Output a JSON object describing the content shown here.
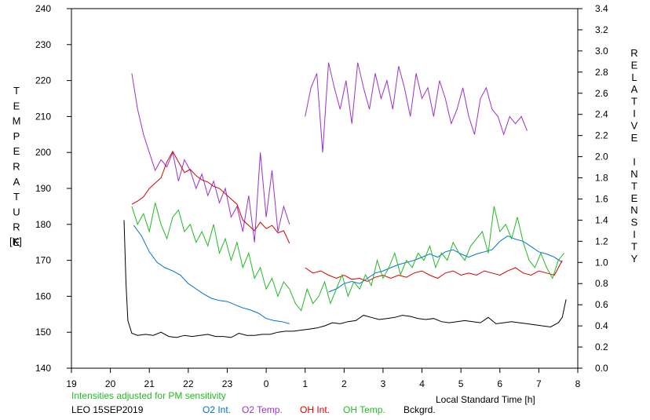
{
  "chart_data": {
    "type": "line",
    "title": "",
    "ylabel_left": "TEMPERATURE",
    "ylabel_left_unit": "[K]",
    "ylabel_right": "RELATIVE INTENSITY",
    "xlabel": "Local Standard Time [h]",
    "note": "Intensities adjusted for PM sensitivity",
    "station_date": "LEO 15SEP2019",
    "xlim": [
      19,
      32
    ],
    "ylim_left": [
      140,
      240
    ],
    "ylim_right": [
      0.0,
      3.4
    ],
    "x_tick_values": [
      19,
      20,
      21,
      22,
      23,
      24,
      25,
      26,
      27,
      28,
      29,
      30,
      31,
      32
    ],
    "x_tick_labels": [
      "19",
      "20",
      "21",
      "22",
      "23",
      "0",
      "1",
      "2",
      "3",
      "4",
      "5",
      "6",
      "7",
      "8"
    ],
    "y_left_ticks": [
      "140",
      "150",
      "160",
      "170",
      "180",
      "190",
      "200",
      "210",
      "220",
      "230",
      "240"
    ],
    "y_right_ticks": [
      "0.0",
      "0.2",
      "0.4",
      "0.6",
      "0.8",
      "1.0",
      "1.2",
      "1.4",
      "1.6",
      "1.8",
      "2.0",
      "2.2",
      "2.4",
      "2.6",
      "2.8",
      "3.0",
      "3.2",
      "3.4"
    ],
    "grid": false,
    "legend_position": "bottom",
    "series": [
      {
        "name": "O2 Int.",
        "color": "#0070dd",
        "axis": "right",
        "x": [
          20.6,
          20.8,
          21.0,
          21.2,
          21.4,
          21.6,
          21.8,
          22.0,
          22.2,
          22.4,
          22.6,
          22.8,
          23.0,
          23.2,
          23.4,
          23.6,
          23.8,
          24.0,
          24.2,
          24.4,
          24.6,
          null,
          25.6,
          25.8,
          26.0,
          26.2,
          26.4,
          26.6,
          26.8,
          27.0,
          27.2,
          27.4,
          27.6,
          27.8,
          28.0,
          28.2,
          28.4,
          28.6,
          28.8,
          29.0,
          29.2,
          29.4,
          29.6,
          29.8,
          30.0,
          30.2,
          30.4,
          30.6,
          30.8,
          31.0,
          31.2,
          31.4,
          31.6
        ],
        "y": [
          1.35,
          1.25,
          1.1,
          1.0,
          0.95,
          0.92,
          0.88,
          0.8,
          0.75,
          0.7,
          0.66,
          0.64,
          0.63,
          0.6,
          0.57,
          0.55,
          0.52,
          0.47,
          0.45,
          0.44,
          0.42,
          null,
          0.72,
          0.75,
          0.8,
          0.82,
          0.8,
          0.85,
          0.9,
          0.92,
          0.95,
          0.98,
          1.0,
          1.02,
          1.05,
          1.08,
          1.05,
          1.1,
          1.12,
          1.08,
          1.05,
          1.08,
          1.1,
          1.12,
          1.2,
          1.25,
          1.22,
          1.2,
          1.15,
          1.1,
          1.08,
          1.05,
          1.0
        ]
      },
      {
        "name": "O2 Temp.",
        "color": "#9933cc",
        "axis": "left",
        "x": [
          20.55,
          20.7,
          20.85,
          21.0,
          21.15,
          21.3,
          21.45,
          21.6,
          21.75,
          21.9,
          22.05,
          22.2,
          22.35,
          22.5,
          22.65,
          22.8,
          22.95,
          23.1,
          23.25,
          23.4,
          23.55,
          23.7,
          23.85,
          24.0,
          24.15,
          24.3,
          24.45,
          24.6,
          null,
          25.0,
          25.15,
          25.3,
          25.45,
          25.6,
          25.75,
          25.9,
          26.05,
          26.2,
          26.35,
          26.5,
          26.65,
          26.8,
          26.95,
          27.1,
          27.25,
          27.4,
          27.55,
          27.7,
          27.85,
          28.0,
          28.15,
          28.3,
          28.45,
          28.6,
          28.75,
          28.9,
          29.05,
          29.2,
          29.35,
          29.5,
          29.65,
          29.8,
          29.95,
          30.1,
          30.25,
          30.4,
          30.55,
          30.7
        ],
        "y": [
          222,
          212,
          205,
          200,
          195,
          198,
          196,
          200,
          192,
          198,
          195,
          190,
          194,
          188,
          192,
          186,
          190,
          182,
          185,
          178,
          188,
          175,
          200,
          182,
          195,
          178,
          185,
          180,
          null,
          210,
          218,
          222,
          200,
          225,
          218,
          212,
          220,
          208,
          225,
          218,
          212,
          222,
          215,
          220,
          212,
          224,
          218,
          210,
          222,
          215,
          218,
          210,
          220,
          215,
          208,
          212,
          218,
          210,
          205,
          215,
          218,
          212,
          210,
          205,
          210,
          208,
          210,
          206
        ]
      },
      {
        "name": "OH Int.",
        "color": "#dd0000",
        "axis": "right",
        "x": [
          20.55,
          20.7,
          20.85,
          21.0,
          21.15,
          21.3,
          21.45,
          21.6,
          21.75,
          21.9,
          22.05,
          22.2,
          22.35,
          22.5,
          22.65,
          22.8,
          22.95,
          23.1,
          23.25,
          23.4,
          23.55,
          23.7,
          23.85,
          24.0,
          24.15,
          24.3,
          24.45,
          24.6,
          null,
          25.0,
          25.2,
          25.4,
          25.6,
          25.8,
          26.0,
          26.2,
          26.4,
          26.6,
          26.8,
          27.0,
          27.2,
          27.4,
          27.6,
          27.8,
          28.0,
          28.2,
          28.4,
          28.6,
          28.8,
          29.0,
          29.2,
          29.4,
          29.6,
          29.8,
          30.0,
          30.2,
          30.4,
          30.6,
          30.8,
          31.0,
          31.2,
          31.4,
          31.6
        ],
        "y": [
          1.55,
          1.58,
          1.62,
          1.7,
          1.75,
          1.8,
          1.95,
          2.05,
          1.95,
          1.85,
          1.88,
          1.82,
          1.78,
          1.76,
          1.72,
          1.7,
          1.65,
          1.6,
          1.55,
          1.4,
          1.35,
          1.3,
          1.38,
          1.32,
          1.35,
          1.28,
          1.3,
          1.18,
          null,
          0.95,
          0.9,
          0.92,
          0.88,
          0.85,
          0.88,
          0.84,
          0.85,
          0.82,
          0.86,
          0.88,
          0.85,
          0.88,
          0.86,
          0.9,
          0.92,
          0.88,
          0.85,
          0.9,
          0.92,
          0.88,
          0.9,
          0.88,
          0.92,
          0.9,
          0.88,
          0.92,
          0.95,
          0.9,
          0.88,
          0.92,
          0.9,
          0.88,
          1.02
        ]
      },
      {
        "name": "OH Temp.",
        "color": "#22bb22",
        "axis": "left",
        "x": [
          20.55,
          20.7,
          20.85,
          21.0,
          21.15,
          21.3,
          21.45,
          21.6,
          21.75,
          21.9,
          22.05,
          22.2,
          22.35,
          22.5,
          22.65,
          22.8,
          22.95,
          23.1,
          23.25,
          23.4,
          23.55,
          23.7,
          23.85,
          24.0,
          24.15,
          24.3,
          24.45,
          24.6,
          24.75,
          24.9,
          25.05,
          25.2,
          25.35,
          25.5,
          25.65,
          25.8,
          25.95,
          26.1,
          26.25,
          26.4,
          26.55,
          26.7,
          26.85,
          27.0,
          27.15,
          27.3,
          27.45,
          27.6,
          27.75,
          27.9,
          28.05,
          28.2,
          28.35,
          28.5,
          28.65,
          28.8,
          28.95,
          29.1,
          29.25,
          29.4,
          29.55,
          29.7,
          29.85,
          30.0,
          30.15,
          30.3,
          30.45,
          30.6,
          30.75,
          30.9,
          31.05,
          31.2,
          31.35,
          31.5,
          31.65
        ],
        "y": [
          185,
          180,
          183,
          178,
          186,
          180,
          176,
          182,
          184,
          178,
          180,
          175,
          178,
          174,
          180,
          172,
          176,
          170,
          175,
          168,
          172,
          165,
          168,
          162,
          165,
          160,
          164,
          162,
          158,
          156,
          162,
          158,
          160,
          164,
          158,
          162,
          166,
          160,
          164,
          162,
          166,
          163,
          170,
          165,
          168,
          172,
          166,
          170,
          168,
          172,
          170,
          174,
          168,
          172,
          170,
          175,
          172,
          170,
          174,
          176,
          178,
          172,
          185,
          178,
          180,
          176,
          182,
          175,
          170,
          168,
          172,
          168,
          165,
          170,
          172
        ]
      },
      {
        "name": "Bckgrd.",
        "color": "#000000",
        "axis": "right",
        "x": [
          20.35,
          20.4,
          20.45,
          20.55,
          20.7,
          20.9,
          21.1,
          21.3,
          21.5,
          21.7,
          21.9,
          22.1,
          22.3,
          22.5,
          22.7,
          22.9,
          23.1,
          23.3,
          23.5,
          23.7,
          23.9,
          24.1,
          24.3,
          24.5,
          24.7,
          24.9,
          25.1,
          25.3,
          25.5,
          25.7,
          25.9,
          26.1,
          26.3,
          26.5,
          26.7,
          26.9,
          27.1,
          27.3,
          27.5,
          27.7,
          27.9,
          28.1,
          28.3,
          28.5,
          28.7,
          28.9,
          29.1,
          29.3,
          29.5,
          29.7,
          29.9,
          30.1,
          30.3,
          30.5,
          30.7,
          30.9,
          31.1,
          31.3,
          31.5,
          31.6,
          31.7
        ],
        "y": [
          1.4,
          0.8,
          0.45,
          0.33,
          0.31,
          0.32,
          0.31,
          0.34,
          0.3,
          0.29,
          0.31,
          0.3,
          0.31,
          0.32,
          0.3,
          0.3,
          0.29,
          0.33,
          0.31,
          0.31,
          0.32,
          0.32,
          0.34,
          0.35,
          0.35,
          0.36,
          0.37,
          0.38,
          0.4,
          0.43,
          0.42,
          0.44,
          0.45,
          0.5,
          0.48,
          0.46,
          0.47,
          0.48,
          0.5,
          0.49,
          0.47,
          0.46,
          0.47,
          0.44,
          0.43,
          0.44,
          0.45,
          0.44,
          0.43,
          0.48,
          0.42,
          0.43,
          0.44,
          0.43,
          0.42,
          0.41,
          0.4,
          0.39,
          0.43,
          0.48,
          0.65
        ]
      }
    ]
  }
}
